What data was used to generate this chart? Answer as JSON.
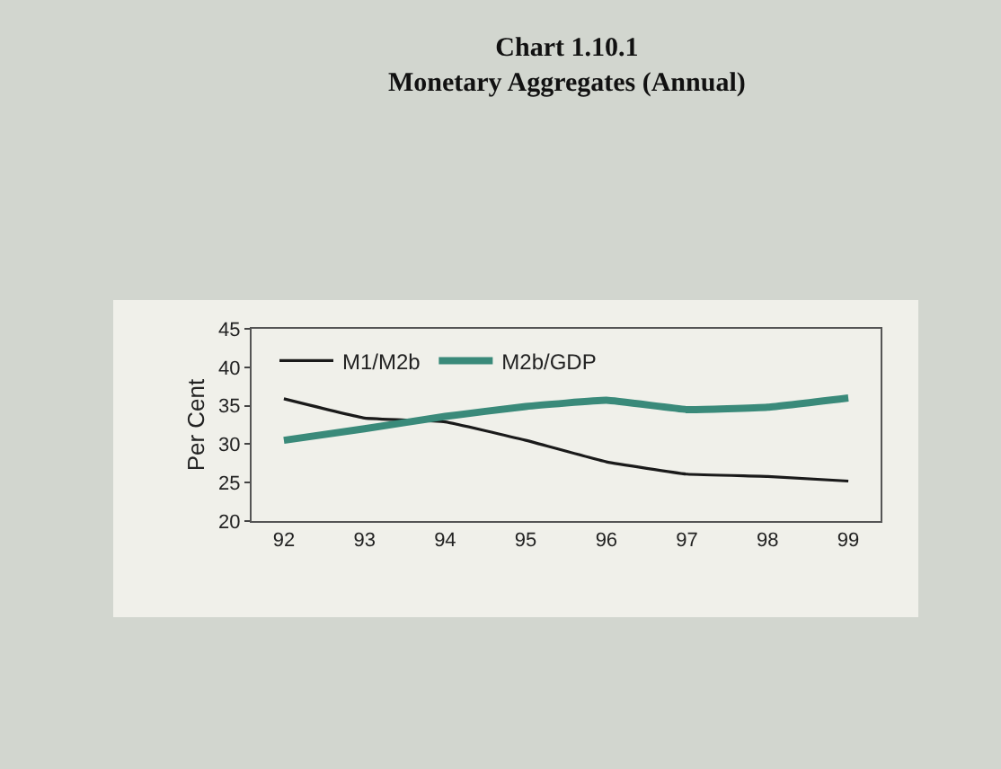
{
  "chart_data": {
    "type": "line",
    "title": "Chart 1.10.1",
    "subtitle": "Monetary Aggregates (Annual)",
    "ylabel": "Per Cent",
    "categories": [
      "92",
      "93",
      "94",
      "95",
      "96",
      "97",
      "98",
      "99"
    ],
    "series": [
      {
        "name": "M1/M2b",
        "color": "#1a1a1a",
        "values": [
          35.9,
          33.4,
          32.9,
          30.5,
          27.7,
          26.1,
          25.8,
          25.2
        ]
      },
      {
        "name": "M2b/GDP",
        "color": "#3a8a7a",
        "values": [
          30.5,
          32.0,
          33.6,
          34.9,
          35.7,
          34.5,
          34.8,
          36.0
        ]
      }
    ],
    "ylim": [
      20,
      45
    ],
    "yticks": [
      20,
      25,
      30,
      35,
      40,
      45
    ],
    "grid": false,
    "legend": "top left",
    "marker": "none",
    "line_style": "solid"
  }
}
